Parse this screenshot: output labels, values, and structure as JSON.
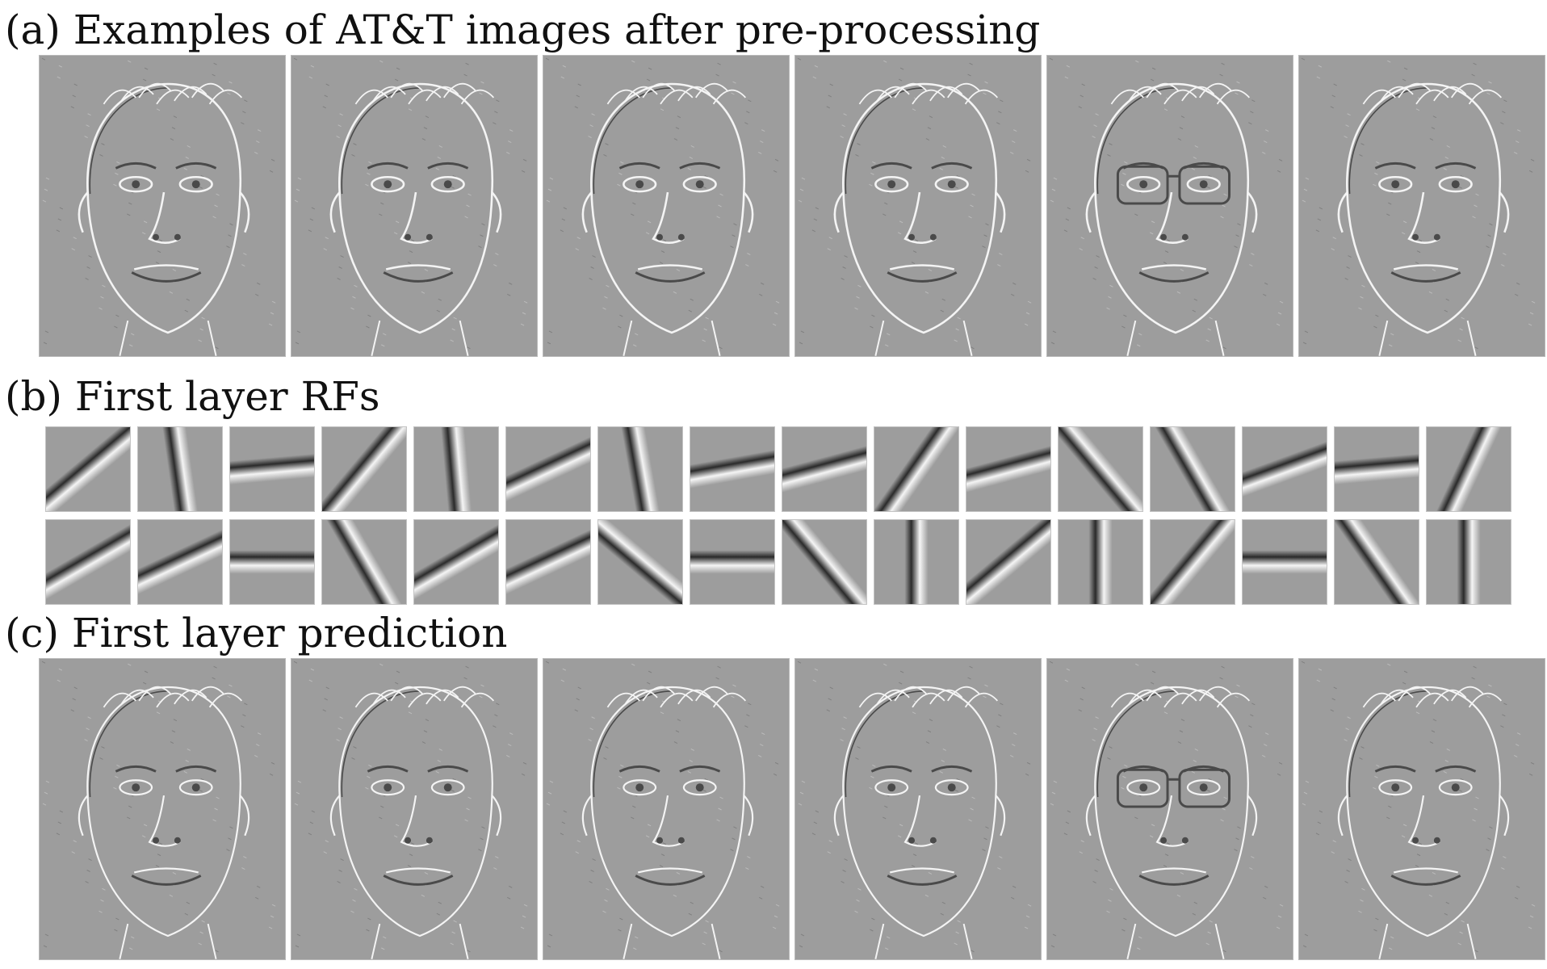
{
  "panels": {
    "a": {
      "title": "(a) Examples of AT&T images after pre-processing"
    },
    "b": {
      "title": "(b) First layer RFs"
    },
    "c": {
      "title": "(c) First layer prediction"
    }
  },
  "faces": [
    {
      "name": "face-1",
      "glasses": false
    },
    {
      "name": "face-2",
      "glasses": false
    },
    {
      "name": "face-3",
      "glasses": false
    },
    {
      "name": "face-4",
      "glasses": false
    },
    {
      "name": "face-5",
      "glasses": true
    },
    {
      "name": "face-6",
      "glasses": false
    }
  ],
  "receptive_fields": {
    "row1_orientations_deg": [
      50,
      -8,
      85,
      40,
      -5,
      65,
      -10,
      80,
      75,
      35,
      75,
      -40,
      -30,
      70,
      85,
      25
    ],
    "row2_orientations_deg": [
      60,
      65,
      90,
      -30,
      60,
      65,
      -50,
      90,
      -40,
      0,
      50,
      0,
      40,
      90,
      -35,
      0
    ]
  },
  "colors": {
    "background": "#ffffff",
    "image_gray": "#9d9d9d"
  }
}
